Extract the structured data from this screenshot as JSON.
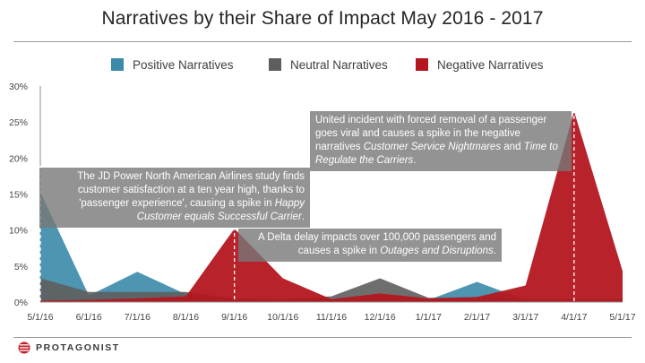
{
  "title": "Narratives by their Share of Impact May 2016 - 2017",
  "brand": "PROTAGONIST",
  "colors": {
    "positive": "#3a8aa8",
    "neutral": "#5e5e5e",
    "negative": "#b4161f",
    "brand_mark": "#c0202a"
  },
  "chart_data": {
    "type": "area",
    "categories": [
      "5/1/16",
      "6/1/16",
      "7/1/16",
      "8/1/16",
      "9/1/16",
      "10/1/16",
      "11/1/16",
      "12/1/16",
      "1/1/17",
      "2/1/17",
      "3/1/17",
      "4/1/17",
      "5/1/17"
    ],
    "y_ticks": [
      "0%",
      "5%",
      "10%",
      "15%",
      "20%",
      "25%",
      "30%"
    ],
    "ylim": [
      0,
      30
    ],
    "legend_position": "top",
    "series": [
      {
        "name": "Positive Narratives",
        "color": "#3a8aa8",
        "values": [
          15.3,
          0.9,
          4.2,
          1.1,
          0.3,
          0.3,
          0.3,
          0.3,
          0.3,
          2.8,
          0.3,
          0.3,
          0.3
        ]
      },
      {
        "name": "Neutral Narratives",
        "color": "#5e5e5e",
        "values": [
          3.3,
          1.4,
          1.4,
          1.4,
          0.5,
          0.4,
          0.8,
          3.3,
          0.6,
          0.7,
          0.4,
          0.4,
          0.4
        ]
      },
      {
        "name": "Negative Narratives",
        "color": "#b4161f",
        "values": [
          0.2,
          0.3,
          0.5,
          0.8,
          10.2,
          3.3,
          0.4,
          1.2,
          0.5,
          0.7,
          2.3,
          26.5,
          4.3
        ]
      }
    ],
    "annotations": [
      {
        "category": "5/1/16",
        "pre": "The  JD Power North American Airlines study finds customer satisfaction at a ten year high, thanks to 'passenger experience', causing a spike in ",
        "em1": "Happy Customer equals Successful Carrier",
        "mid": ".",
        "em2": "",
        "post": ""
      },
      {
        "category": "9/1/16",
        "pre": "A Delta delay impacts over 100,000 passengers and causes a spike in ",
        "em1": "Outages and Disruptions",
        "mid": ".",
        "em2": "",
        "post": ""
      },
      {
        "category": "4/1/17",
        "pre": "United incident with forced removal of a passenger goes viral and causes a spike in the negative narratives ",
        "em1": "Customer Service Nightmares",
        "mid": " and ",
        "em2": "Time to Regulate the Carriers",
        "post": "."
      }
    ]
  }
}
